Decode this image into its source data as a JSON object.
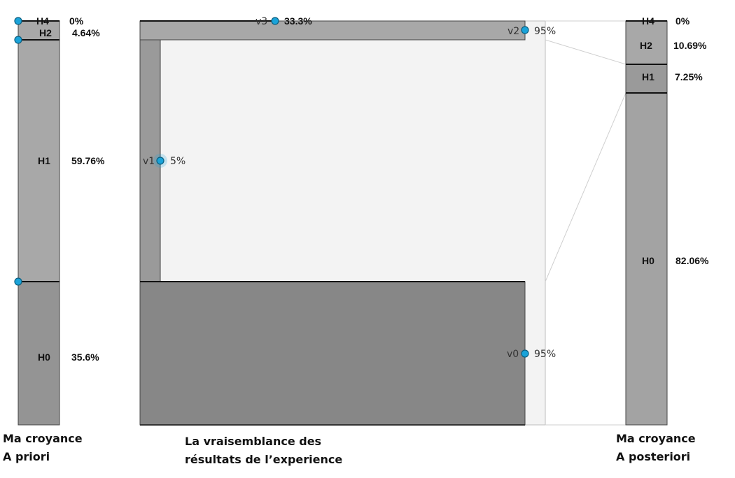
{
  "colors": {
    "light_gray": "#a8a8a8",
    "mid_gray": "#9a9a9a",
    "dark_gray": "#878787",
    "pale_bg": "#f3f3f3",
    "handle_fill": "#1aa3d9",
    "handle_stroke": "#0a5f80"
  },
  "prior": {
    "caption_line1": "Ma croyance",
    "caption_line2": "A priori",
    "segments": [
      {
        "label": "H4",
        "value": 0,
        "value_text": "0%"
      },
      {
        "label": "H2",
        "value": 4.64,
        "value_text": "4.64%"
      },
      {
        "label": "H1",
        "value": 59.76,
        "value_text": "59.76%"
      },
      {
        "label": "H0",
        "value": 35.6,
        "value_text": "35.6%"
      }
    ]
  },
  "likelihood": {
    "caption_line1": "La vraisemblance  des",
    "caption_line2": "résultats de l’experience",
    "handles": [
      {
        "label": "v3",
        "value": 33.3,
        "value_text": "33.3%",
        "hypothesis": "H4"
      },
      {
        "label": "v2",
        "value": 95,
        "value_text": "95%",
        "hypothesis": "H2"
      },
      {
        "label": "v1",
        "value": 5,
        "value_text": "5%",
        "hypothesis": "H1"
      },
      {
        "label": "v0",
        "value": 95,
        "value_text": "95%",
        "hypothesis": "H0"
      }
    ]
  },
  "posterior": {
    "caption_line1": "Ma croyance",
    "caption_line2": "A posteriori",
    "segments": [
      {
        "label": "H4",
        "value": 0,
        "value_text": "0%"
      },
      {
        "label": "H2",
        "value": 10.69,
        "value_text": "10.69%"
      },
      {
        "label": "H1",
        "value": 7.25,
        "value_text": "7.25%"
      },
      {
        "label": "H0",
        "value": 82.06,
        "value_text": "82.06%"
      }
    ]
  }
}
